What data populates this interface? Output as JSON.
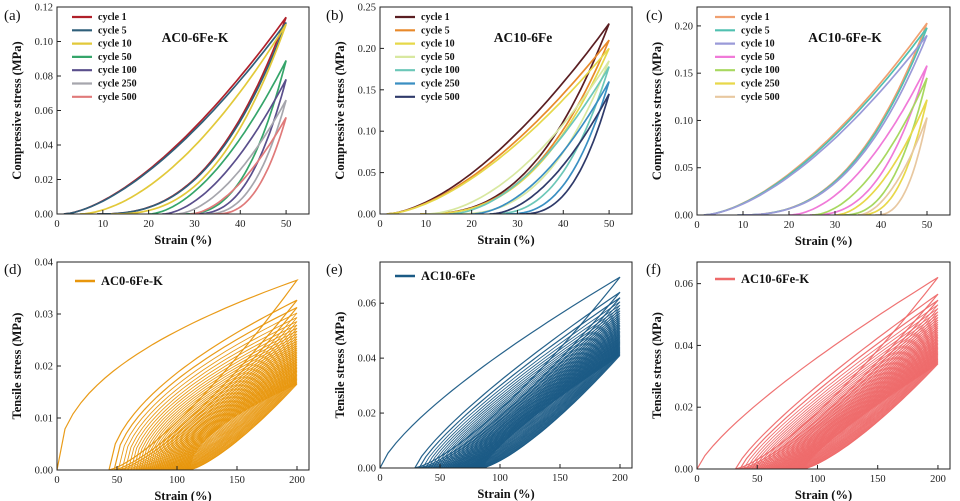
{
  "chart_data": [
    {
      "type": "line",
      "panel": "(a)",
      "title": "AC0-6Fe-K",
      "xlabel": "Strain (%)",
      "ylabel": "Compressive stress (MPa)",
      "xlim": [
        0,
        55
      ],
      "ylim": [
        0,
        0.12
      ],
      "xticks": [
        0,
        10,
        20,
        30,
        40,
        50
      ],
      "yticks": [
        0,
        0.02,
        0.04,
        0.06,
        0.08,
        0.1,
        0.12
      ],
      "ytick_labels": [
        "0.00",
        "0.02",
        "0.04",
        "0.06",
        "0.08",
        "0.10",
        "0.12"
      ],
      "x_start_fraction": 0.03,
      "start_curvature": 2,
      "series": [
        {
          "name": "cycle 1",
          "color": "#b0202a",
          "x0": 0,
          "peak": 0.114,
          "resid": 0.0
        },
        {
          "name": "cycle 5",
          "color": "#2f5f7a",
          "x0": 0,
          "peak": 0.111,
          "resid": 0.0
        },
        {
          "name": "cycle 10",
          "color": "#e2c93a",
          "x0": 5,
          "peak": 0.11,
          "resid": 0.0
        },
        {
          "name": "cycle 50",
          "color": "#35a56a",
          "x0": 20,
          "peak": 0.089,
          "resid": 0.05
        },
        {
          "name": "cycle 100",
          "color": "#5a4f8c",
          "x0": 23,
          "peak": 0.078,
          "resid": 0.07
        },
        {
          "name": "cycle 250",
          "color": "#a6a6ad",
          "x0": 26,
          "peak": 0.066,
          "resid": 0.08
        },
        {
          "name": "cycle 500",
          "color": "#e07a7a",
          "x0": 29,
          "peak": 0.056,
          "resid": 0.1
        }
      ]
    },
    {
      "type": "line",
      "panel": "(b)",
      "title": "AC10-6Fe",
      "xlabel": "Strain (%)",
      "ylabel": "Compressive stress (MPa)",
      "xlim": [
        0,
        55
      ],
      "ylim": [
        0,
        0.25
      ],
      "xticks": [
        0,
        10,
        20,
        30,
        40,
        50
      ],
      "yticks": [
        0,
        0.05,
        0.1,
        0.15,
        0.2,
        0.25
      ],
      "ytick_labels": [
        "0.00",
        "0.05",
        "0.10",
        "0.15",
        "0.20",
        "0.25"
      ],
      "x_start_fraction": 0.03,
      "start_curvature": 2.5,
      "series": [
        {
          "name": "cycle 1",
          "color": "#5a1e22",
          "x0": 0,
          "peak": 0.23,
          "resid": 0.0
        },
        {
          "name": "cycle 5",
          "color": "#e8892a",
          "x0": 0,
          "peak": 0.21,
          "resid": 0.0
        },
        {
          "name": "cycle 10",
          "color": "#e6d84a",
          "x0": 0,
          "peak": 0.2,
          "resid": 0.0
        },
        {
          "name": "cycle 50",
          "color": "#d8e8a0",
          "x0": 10,
          "peak": 0.185,
          "resid": 0.0
        },
        {
          "name": "cycle 100",
          "color": "#6cc7b8",
          "x0": 15,
          "peak": 0.178,
          "resid": 0.03
        },
        {
          "name": "cycle 250",
          "color": "#3a8fc2",
          "x0": 20,
          "peak": 0.16,
          "resid": 0.05
        },
        {
          "name": "cycle 500",
          "color": "#2f3a6a",
          "x0": 24,
          "peak": 0.145,
          "resid": 0.06
        }
      ]
    },
    {
      "type": "line",
      "panel": "(c)",
      "title": "AC10-6Fe-K",
      "xlabel": "Strain (%)",
      "ylabel": "Compressive stress (MPa)",
      "xlim": [
        0,
        55
      ],
      "ylim": [
        0,
        0.22
      ],
      "xticks": [
        0,
        10,
        20,
        30,
        40,
        50
      ],
      "yticks": [
        0,
        0.05,
        0.1,
        0.15,
        0.2
      ],
      "ytick_labels": [
        "0.00",
        "0.05",
        "0.10",
        "0.15",
        "0.20"
      ],
      "x_start_fraction": 0.03,
      "start_curvature": 2.5,
      "series": [
        {
          "name": "cycle 1",
          "color": "#f0a070",
          "x0": 0,
          "peak": 0.203,
          "resid": 0.0
        },
        {
          "name": "cycle 5",
          "color": "#50c0b0",
          "x0": 0,
          "peak": 0.198,
          "resid": 0.0
        },
        {
          "name": "cycle 10",
          "color": "#9a9ad8",
          "x0": 0,
          "peak": 0.19,
          "resid": 0.0
        },
        {
          "name": "cycle 50",
          "color": "#f07ad8",
          "x0": 20,
          "peak": 0.158,
          "resid": 0.0
        },
        {
          "name": "cycle 100",
          "color": "#a8d860",
          "x0": 25,
          "peak": 0.145,
          "resid": 0.05
        },
        {
          "name": "cycle 250",
          "color": "#e8d84a",
          "x0": 30,
          "peak": 0.122,
          "resid": 0.07
        },
        {
          "name": "cycle 500",
          "color": "#e8c8a0",
          "x0": 35,
          "peak": 0.103,
          "resid": 0.08
        }
      ]
    },
    {
      "type": "line",
      "panel": "(d)",
      "title": "AC0-6Fe-K",
      "xlabel": "Strain (%)",
      "ylabel": "Tensile stress (MPa)",
      "xlim": [
        0,
        210
      ],
      "ylim": [
        0,
        0.04
      ],
      "xticks": [
        0,
        50,
        100,
        150,
        200
      ],
      "yticks": [
        0,
        0.01,
        0.02,
        0.03,
        0.04
      ],
      "ytick_labels": [
        "0.00",
        "0.01",
        "0.02",
        "0.03",
        "0.04"
      ],
      "legend": [
        {
          "name": "AC0-6Fe-K",
          "color": "#e8960c"
        }
      ],
      "color": "#e8960c",
      "peak_max": 0.0365,
      "peak_min": 0.0165,
      "loops": 40,
      "first_resid_strain": 35,
      "resid_strain_max": 110,
      "loading_curvature": 0.55,
      "first_loading_curvature": 0.45
    },
    {
      "type": "line",
      "panel": "(e)",
      "title": "AC10-6Fe",
      "xlabel": "Strain (%)",
      "ylabel": "Tensile stress (MPa)",
      "xlim": [
        0,
        210
      ],
      "ylim": [
        0,
        0.075
      ],
      "xticks": [
        0,
        50,
        100,
        150,
        200
      ],
      "yticks": [
        0,
        0.02,
        0.04,
        0.06
      ],
      "ytick_labels": [
        "0.00",
        "0.02",
        "0.04",
        "0.06"
      ],
      "legend": [
        {
          "name": "AC10-6Fe",
          "color": "#1a5a85"
        }
      ],
      "color": "#1a5a85",
      "peak_max": 0.0695,
      "peak_min": 0.041,
      "loops": 40,
      "first_resid_strain": 22,
      "resid_strain_max": 85,
      "loading_curvature": 0.8,
      "first_loading_curvature": 0.75
    },
    {
      "type": "line",
      "panel": "(f)",
      "title": "AC10-6Fe-K",
      "xlabel": "Strain (%)",
      "ylabel": "Tensile stress (MPa)",
      "xlim": [
        0,
        210
      ],
      "ylim": [
        0,
        0.067
      ],
      "xticks": [
        0,
        50,
        100,
        150,
        200
      ],
      "yticks": [
        0,
        0.02,
        0.04,
        0.06
      ],
      "ytick_labels": [
        "0.00",
        "0.02",
        "0.04",
        "0.06"
      ],
      "legend": [
        {
          "name": "AC10-6Fe-K",
          "color": "#ee6a6a"
        }
      ],
      "color": "#ee6a6a",
      "peak_max": 0.062,
      "peak_min": 0.034,
      "loops": 40,
      "first_resid_strain": 25,
      "resid_strain_max": 88,
      "loading_curvature": 0.82,
      "first_loading_curvature": 0.78
    }
  ]
}
